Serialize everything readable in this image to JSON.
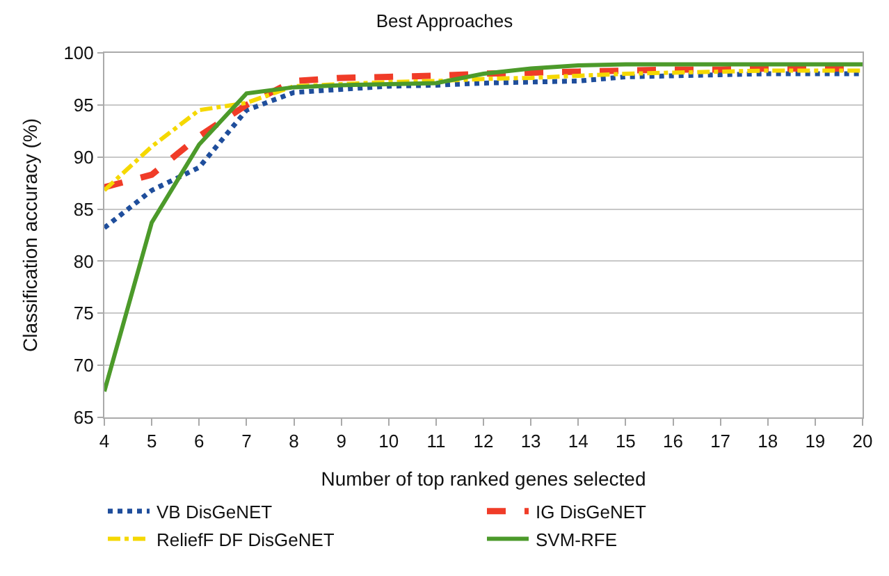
{
  "chart_data": {
    "type": "line",
    "title": "Best Approaches",
    "xlabel": "Number of top ranked genes selected",
    "ylabel": "Classification accuracy (%)",
    "x": [
      4,
      5,
      6,
      7,
      8,
      9,
      10,
      11,
      12,
      13,
      14,
      15,
      16,
      17,
      18,
      19,
      20
    ],
    "series": [
      {
        "name": "VB DisGeNET",
        "color": "#1f4e9c",
        "line_style": "dotted",
        "values": [
          83.2,
          86.8,
          89,
          94.5,
          96.2,
          96.5,
          96.8,
          96.9,
          97.1,
          97.2,
          97.3,
          97.7,
          97.8,
          97.9,
          98,
          98,
          98
        ]
      },
      {
        "name": "IG DisGeNET",
        "color": "#f03c28",
        "line_style": "dashed",
        "values": [
          87.1,
          88.3,
          92,
          95,
          97.3,
          97.6,
          97.7,
          97.8,
          98,
          98.1,
          98.2,
          98.3,
          98.4,
          98.4,
          98.5,
          98.5,
          98.5
        ]
      },
      {
        "name": "ReliefF DF DisGeNET",
        "color": "#f5d800",
        "line_style": "dashdot",
        "values": [
          86.8,
          91,
          94.5,
          95.2,
          96.8,
          97,
          97.2,
          97.3,
          97.5,
          97.6,
          97.8,
          98,
          98.1,
          98.2,
          98.3,
          98.3,
          98.3
        ]
      },
      {
        "name": "SVM-RFE",
        "color": "#4c9a2a",
        "line_style": "solid",
        "values": [
          67.5,
          83.7,
          91.2,
          96.1,
          96.7,
          96.9,
          97,
          97.1,
          98,
          98.5,
          98.8,
          98.9,
          98.9,
          98.9,
          98.9,
          98.9,
          98.9
        ]
      }
    ],
    "xlim": [
      4,
      20
    ],
    "xticks": [
      4,
      5,
      6,
      7,
      8,
      9,
      10,
      11,
      12,
      13,
      14,
      15,
      16,
      17,
      18,
      19,
      20
    ],
    "ylim": [
      65,
      100
    ],
    "yticks": [
      65,
      70,
      75,
      80,
      85,
      90,
      95,
      100
    ],
    "grid": "y",
    "legend": "bottom",
    "marker": "none"
  }
}
